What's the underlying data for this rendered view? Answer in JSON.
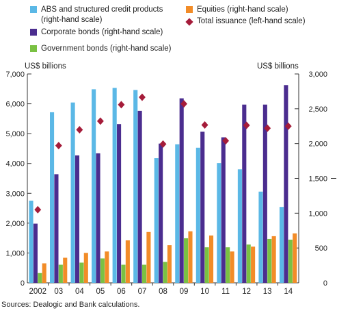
{
  "legend": {
    "abs": {
      "line1": "ABS and structured credit products",
      "line2": "(right-hand scale)",
      "color": "#5bb8e6"
    },
    "corporate": {
      "label": "Corporate bonds (right-hand scale)",
      "color": "#4b2d8f"
    },
    "government": {
      "label": "Government bonds (right-hand scale)",
      "color": "#7ac143"
    },
    "equities": {
      "label": "Equities (right-hand scale)",
      "color": "#f28c28"
    },
    "total": {
      "label": "Total issuance (left-hand scale)",
      "color": "#a51c3a"
    }
  },
  "left_unit": "US$ billions",
  "right_unit": "US$ billions",
  "source": "Sources:  Dealogic and Bank calculations.",
  "chart_data": {
    "type": "bar",
    "categories": [
      "2002",
      "03",
      "04",
      "05",
      "06",
      "07",
      "08",
      "09",
      "10",
      "11",
      "12",
      "13",
      "14"
    ],
    "series": [
      {
        "name": "ABS and structured credit products (right-hand scale)",
        "axis": "right",
        "color": "#5bb8e6",
        "values": [
          1180,
          2450,
          2590,
          2780,
          2800,
          2770,
          1790,
          1990,
          1940,
          1720,
          1630,
          1310,
          1090
        ]
      },
      {
        "name": "Corporate bonds (right-hand scale)",
        "axis": "right",
        "color": "#4b2d8f",
        "values": [
          850,
          1560,
          1830,
          1860,
          2280,
          2470,
          2000,
          2650,
          2170,
          2090,
          2560,
          2560,
          2840
        ]
      },
      {
        "name": "Government bonds (right-hand scale)",
        "axis": "right",
        "color": "#7ac143",
        "values": [
          140,
          260,
          290,
          350,
          260,
          260,
          300,
          640,
          510,
          510,
          550,
          630,
          620
        ]
      },
      {
        "name": "Equities (right-hand scale)",
        "axis": "right",
        "color": "#f28c28",
        "values": [
          280,
          360,
          430,
          450,
          610,
          730,
          540,
          740,
          680,
          450,
          520,
          670,
          710
        ]
      },
      {
        "name": "Total issuance (left-hand scale)",
        "axis": "left",
        "type": "scatter",
        "marker": "diamond",
        "color": "#a51c3a",
        "values": [
          2450,
          4600,
          5130,
          5420,
          5970,
          6220,
          4650,
          6000,
          5290,
          4760,
          5280,
          5180,
          5250
        ]
      }
    ],
    "left_axis": {
      "min": 0,
      "max": 7000,
      "ticks": [
        0,
        1000,
        2000,
        3000,
        4000,
        5000,
        6000,
        7000
      ],
      "tick_labels": [
        "0",
        "1,000",
        "2,000",
        "3,000",
        "4,000",
        "5,000",
        "6,000",
        "7,000"
      ]
    },
    "right_axis": {
      "min": 0,
      "max": 3000,
      "ticks": [
        0,
        500,
        1000,
        1500,
        2000,
        2500,
        3000
      ],
      "tick_labels": [
        "0",
        "500",
        "1,000",
        "1,500",
        "2,000",
        "2,500",
        "3,000"
      ]
    },
    "grid": false
  }
}
